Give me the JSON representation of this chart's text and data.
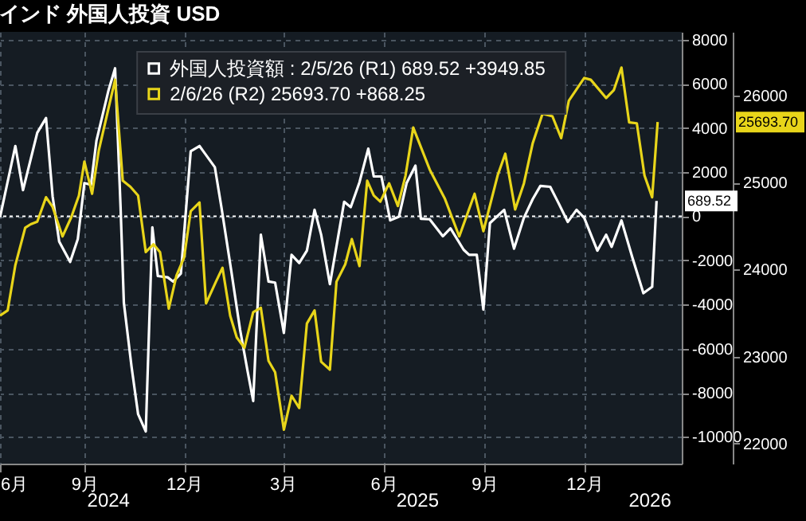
{
  "chart_data": {
    "type": "line",
    "title": "インド  外国人投資  USD",
    "xlim": [
      "2024-06-16",
      "2026-02-28"
    ],
    "xticks": [
      {
        "value": "2024-06-16",
        "label": "6月"
      },
      {
        "value": "2024-09-01",
        "label": "9月"
      },
      {
        "value": "2024-12-01",
        "label": "12月"
      },
      {
        "value": "2025-03-01",
        "label": "3月"
      },
      {
        "value": "2025-06-01",
        "label": "6月"
      },
      {
        "value": "2025-09-01",
        "label": "9月"
      },
      {
        "value": "2025-12-01",
        "label": "12月"
      }
    ],
    "ylim": [
      -11210,
      8350
    ],
    "yticks": [
      -10000,
      -8000,
      -6000,
      -4000,
      -2000,
      0,
      2000,
      4000,
      6000,
      8000
    ],
    "y2lim": [
      21770,
      26730
    ],
    "y2ticks": [
      22000,
      23000,
      24000,
      25000,
      26000
    ],
    "grid": true,
    "legend": "top",
    "line_style": "solid",
    "ref_lines": [
      {
        "axis": "y",
        "value": 0,
        "color": "#ffffff",
        "line_style": "dotted"
      }
    ],
    "annotations": [
      "689.52",
      "25693.70",
      "2024",
      "2025",
      "2026"
    ],
    "series": [
      {
        "name": "外国人投資額 : 2/5/26 (R1)  689.52  +3949.85",
        "color": "#ffffff",
        "axis": "y",
        "x": [
          "2024-06-16",
          "2024-06-30",
          "2024-07-07",
          "2024-07-20",
          "2024-07-28",
          "2024-08-03",
          "2024-08-09",
          "2024-08-19",
          "2024-08-26",
          "2024-09-01",
          "2024-09-07",
          "2024-09-12",
          "2024-09-23",
          "2024-09-29",
          "2024-10-04",
          "2024-10-07",
          "2024-10-14",
          "2024-10-20",
          "2024-10-27",
          "2024-11-02",
          "2024-11-07",
          "2024-11-16",
          "2024-11-21",
          "2024-11-28",
          "2024-12-07",
          "2024-12-15",
          "2024-12-29",
          "2025-01-04",
          "2025-01-13",
          "2025-01-21",
          "2025-01-28",
          "2025-02-02",
          "2025-02-09",
          "2025-02-16",
          "2025-02-22",
          "2025-03-02",
          "2025-03-09",
          "2025-03-16",
          "2025-03-23",
          "2025-03-30",
          "2025-04-05",
          "2025-04-13",
          "2025-04-26",
          "2025-05-02",
          "2025-05-10",
          "2025-05-18",
          "2025-05-23",
          "2025-05-30",
          "2025-06-07",
          "2025-06-15",
          "2025-06-22",
          "2025-06-30",
          "2025-07-05",
          "2025-07-13",
          "2025-07-25",
          "2025-08-01",
          "2025-08-13",
          "2025-08-18",
          "2025-08-25",
          "2025-08-31",
          "2025-09-06",
          "2025-09-19",
          "2025-09-28",
          "2025-10-07",
          "2025-10-15",
          "2025-10-22",
          "2025-10-31",
          "2025-11-07",
          "2025-11-16",
          "2025-11-24",
          "2025-12-01",
          "2025-12-13",
          "2025-12-21",
          "2025-12-26",
          "2026-01-04",
          "2026-01-14",
          "2026-01-24",
          "2026-02-01",
          "2026-02-05"
        ],
        "values": [
          -50,
          3180,
          1180,
          3780,
          4450,
          900,
          -1150,
          -2070,
          -1030,
          1500,
          1420,
          3420,
          5700,
          6700,
          410,
          -3920,
          -6810,
          -8970,
          -9750,
          -500,
          -2710,
          -2770,
          -2960,
          -2600,
          2940,
          3180,
          2220,
          410,
          -2480,
          -5130,
          -7050,
          -8370,
          -840,
          -2960,
          -3010,
          -5290,
          -1750,
          -2120,
          -1560,
          290,
          -840,
          -3080,
          650,
          410,
          1540,
          3060,
          1800,
          1800,
          -190,
          -20,
          1500,
          2290,
          -120,
          -140,
          -910,
          -550,
          -1520,
          -1750,
          -1750,
          -4230,
          -310,
          290,
          -1470,
          -70,
          770,
          1370,
          1330,
          650,
          -260,
          290,
          -70,
          -1560,
          -840,
          -1390,
          -190,
          -1880,
          -3490,
          -3200,
          689.52
        ]
      },
      {
        "name": "2/6/26 (R2)  25693.70  +868.25",
        "color": "#e8d51a",
        "axis": "y2",
        "x": [
          "2024-06-16",
          "2024-06-23",
          "2024-06-30",
          "2024-07-09",
          "2024-07-14",
          "2024-07-20",
          "2024-07-28",
          "2024-08-03",
          "2024-08-12",
          "2024-08-20",
          "2024-08-27",
          "2024-09-01",
          "2024-09-08",
          "2024-09-14",
          "2024-09-29",
          "2024-10-06",
          "2024-10-13",
          "2024-10-20",
          "2024-10-27",
          "2024-11-03",
          "2024-11-09",
          "2024-11-17",
          "2024-11-24",
          "2024-12-01",
          "2024-12-07",
          "2024-12-15",
          "2024-12-21",
          "2024-12-30",
          "2025-01-05",
          "2025-01-12",
          "2025-01-18",
          "2025-01-25",
          "2025-02-02",
          "2025-02-09",
          "2025-02-16",
          "2025-02-22",
          "2025-03-02",
          "2025-03-09",
          "2025-03-16",
          "2025-03-23",
          "2025-03-30",
          "2025-04-05",
          "2025-04-13",
          "2025-04-19",
          "2025-04-27",
          "2025-05-03",
          "2025-05-10",
          "2025-05-17",
          "2025-05-23",
          "2025-05-29",
          "2025-06-06",
          "2025-06-14",
          "2025-06-21",
          "2025-06-28",
          "2025-07-13",
          "2025-07-27",
          "2025-08-09",
          "2025-08-23",
          "2025-08-31",
          "2025-09-13",
          "2025-09-20",
          "2025-09-29",
          "2025-10-07",
          "2025-10-15",
          "2025-10-24",
          "2025-11-02",
          "2025-11-10",
          "2025-11-17",
          "2025-12-01",
          "2025-12-07",
          "2025-12-21",
          "2025-12-28",
          "2026-01-04",
          "2026-01-11",
          "2026-01-18",
          "2026-01-25",
          "2026-02-01",
          "2026-02-06"
        ],
        "values": [
          23470,
          23530,
          24050,
          24480,
          24520,
          24550,
          24830,
          24720,
          24380,
          24600,
          24850,
          25240,
          24870,
          25360,
          26180,
          25020,
          24950,
          24850,
          24200,
          24290,
          24200,
          23550,
          23930,
          24140,
          24670,
          24770,
          23610,
          23860,
          24020,
          23470,
          23220,
          23100,
          23510,
          23560,
          22950,
          22820,
          22160,
          22550,
          22410,
          23380,
          23530,
          22940,
          22850,
          23860,
          24060,
          24350,
          24040,
          25020,
          24850,
          24780,
          24990,
          24730,
          25080,
          25630,
          25150,
          24810,
          24380,
          24870,
          24440,
          25080,
          25330,
          24690,
          24990,
          25450,
          25790,
          25760,
          25510,
          25940,
          26200,
          26180,
          25970,
          26060,
          26320,
          25690,
          25680,
          25080,
          24830,
          25693.7
        ]
      }
    ]
  }
}
